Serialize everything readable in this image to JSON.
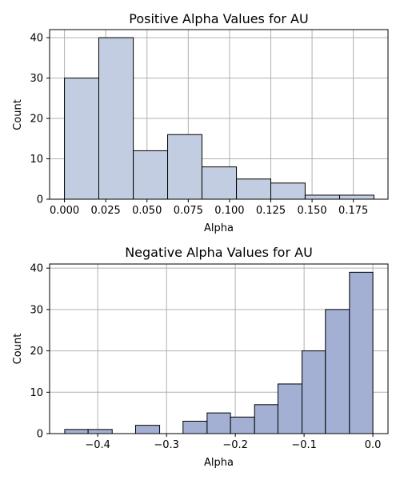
{
  "chart_data": [
    {
      "type": "bar",
      "title": "Positive Alpha Values for AU",
      "xlabel": "Alpha",
      "ylabel": "Count",
      "xlim": [
        -0.009,
        0.196
      ],
      "ylim": [
        0,
        42
      ],
      "grid": true,
      "bar_color": "#c3cde1",
      "x_ticks": [
        {
          "value": 0.0,
          "label": "0.000"
        },
        {
          "value": 0.025,
          "label": "0.025"
        },
        {
          "value": 0.05,
          "label": "0.050"
        },
        {
          "value": 0.075,
          "label": "0.075"
        },
        {
          "value": 0.1,
          "label": "0.100"
        },
        {
          "value": 0.125,
          "label": "0.125"
        },
        {
          "value": 0.15,
          "label": "0.150"
        },
        {
          "value": 0.175,
          "label": "0.175"
        }
      ],
      "y_ticks": [
        {
          "value": 0,
          "label": "0"
        },
        {
          "value": 10,
          "label": "10"
        },
        {
          "value": 20,
          "label": "20"
        },
        {
          "value": 30,
          "label": "30"
        },
        {
          "value": 40,
          "label": "40"
        }
      ],
      "bins": [
        {
          "x0": 0.0,
          "x1": 0.0208,
          "count": 30
        },
        {
          "x0": 0.0208,
          "x1": 0.0417,
          "count": 40
        },
        {
          "x0": 0.0417,
          "x1": 0.0625,
          "count": 12
        },
        {
          "x0": 0.0625,
          "x1": 0.0833,
          "count": 16
        },
        {
          "x0": 0.0833,
          "x1": 0.1042,
          "count": 8
        },
        {
          "x0": 0.1042,
          "x1": 0.125,
          "count": 5
        },
        {
          "x0": 0.125,
          "x1": 0.1458,
          "count": 4
        },
        {
          "x0": 0.1458,
          "x1": 0.1667,
          "count": 1
        },
        {
          "x0": 0.1667,
          "x1": 0.1875,
          "count": 1
        }
      ]
    },
    {
      "type": "bar",
      "title": "Negative Alpha Values for AU",
      "xlabel": "Alpha",
      "ylabel": "Count",
      "xlim": [
        -0.47,
        0.022
      ],
      "ylim": [
        0,
        41
      ],
      "grid": true,
      "bar_color": "#a3b0d4",
      "x_ticks": [
        {
          "value": -0.4,
          "label": "−0.4"
        },
        {
          "value": -0.3,
          "label": "−0.3"
        },
        {
          "value": -0.2,
          "label": "−0.2"
        },
        {
          "value": -0.1,
          "label": "−0.1"
        },
        {
          "value": 0.0,
          "label": "0.0"
        }
      ],
      "y_ticks": [
        {
          "value": 0,
          "label": "0"
        },
        {
          "value": 10,
          "label": "10"
        },
        {
          "value": 20,
          "label": "20"
        },
        {
          "value": 30,
          "label": "30"
        },
        {
          "value": 40,
          "label": "40"
        }
      ],
      "bins": [
        {
          "x0": -0.448,
          "x1": -0.414,
          "count": 1
        },
        {
          "x0": -0.414,
          "x1": -0.379,
          "count": 1
        },
        {
          "x0": -0.379,
          "x1": -0.345,
          "count": 0
        },
        {
          "x0": -0.345,
          "x1": -0.31,
          "count": 2
        },
        {
          "x0": -0.31,
          "x1": -0.276,
          "count": 0
        },
        {
          "x0": -0.276,
          "x1": -0.241,
          "count": 3
        },
        {
          "x0": -0.241,
          "x1": -0.207,
          "count": 5
        },
        {
          "x0": -0.207,
          "x1": -0.172,
          "count": 4
        },
        {
          "x0": -0.172,
          "x1": -0.138,
          "count": 7
        },
        {
          "x0": -0.138,
          "x1": -0.103,
          "count": 12
        },
        {
          "x0": -0.103,
          "x1": -0.069,
          "count": 20
        },
        {
          "x0": -0.069,
          "x1": -0.034,
          "count": 30
        },
        {
          "x0": -0.034,
          "x1": 0.0,
          "count": 39
        }
      ]
    }
  ]
}
